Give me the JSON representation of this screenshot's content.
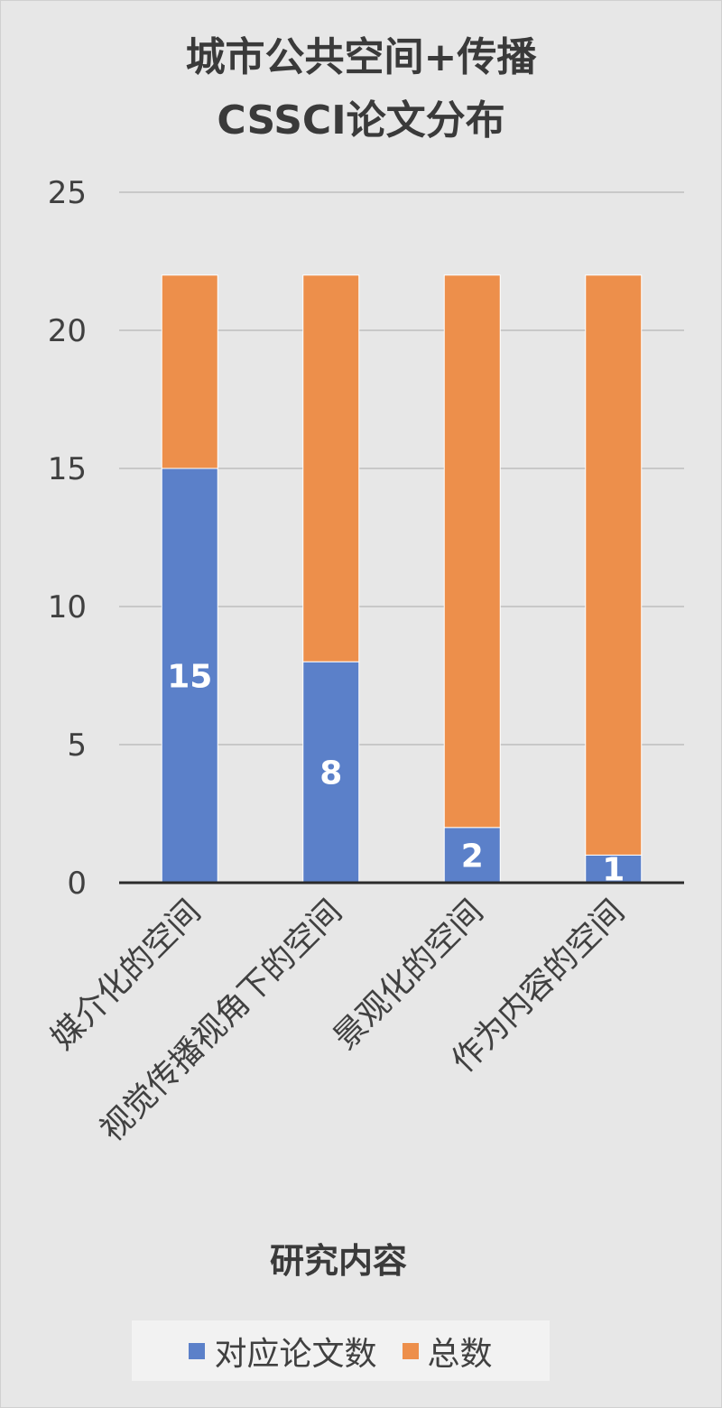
{
  "chart_data": {
    "type": "bar",
    "stacked": true,
    "title": "城市公共空间+传播\nCSSCI论文分布",
    "title_lines": [
      "城市公共空间+传播",
      "CSSCI论文分布"
    ],
    "xlabel": "研究内容",
    "ylabel": "",
    "ylim": [
      0,
      25
    ],
    "yticks": [
      0,
      5,
      10,
      15,
      20,
      25
    ],
    "grid": true,
    "legend_position": "bottom",
    "categories": [
      "媒介化的空间",
      "视觉传播视角下的空间",
      "景观化的空间",
      "作为内容的空间"
    ],
    "series": [
      {
        "name": "对应论文数",
        "values": [
          15,
          8,
          2,
          1
        ],
        "color": "#5b80c9",
        "data_labels": [
          "15",
          "8",
          "2",
          "1"
        ]
      },
      {
        "name": "总数",
        "values": [
          7,
          14,
          20,
          21
        ],
        "color": "#ed8f4b"
      }
    ],
    "totals": [
      22,
      22,
      22,
      22
    ]
  }
}
